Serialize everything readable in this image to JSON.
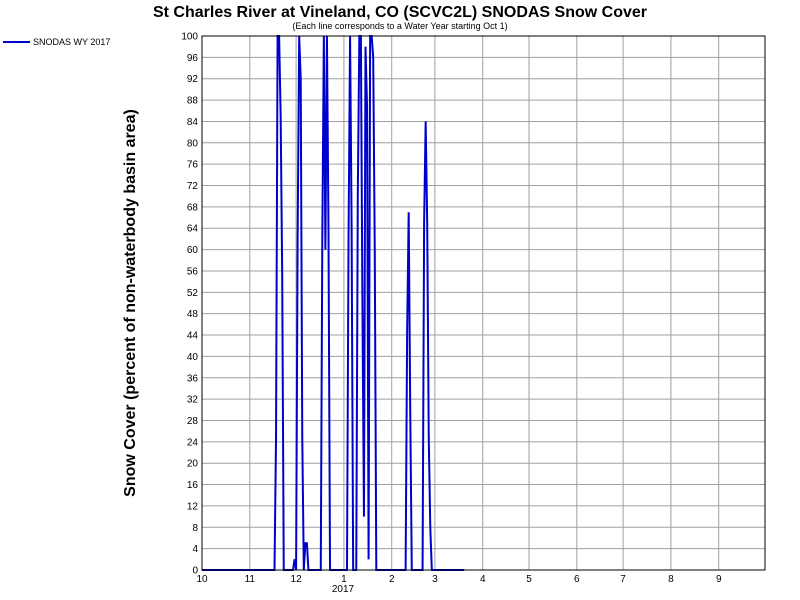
{
  "chart_data": {
    "type": "line",
    "title": "St Charles River at Vineland, CO (SCVC2L) SNODAS Snow Cover",
    "subtitle": "(Each line corresponds to a Water Year starting Oct 1)",
    "ylabel": "Snow Cover (percent of non-waterbody basin area)",
    "xlabel": "",
    "ylim": [
      0,
      100
    ],
    "xlim": [
      "2016-10-01",
      "2017-09-30"
    ],
    "y_ticks": [
      "0",
      "4",
      "8",
      "12",
      "16",
      "20",
      "24",
      "28",
      "32",
      "36",
      "40",
      "44",
      "48",
      "52",
      "56",
      "60",
      "64",
      "68",
      "72",
      "76",
      "80",
      "84",
      "88",
      "92",
      "96",
      "100"
    ],
    "x_ticks": [
      "10",
      "11",
      "12",
      "1",
      "2",
      "3",
      "4",
      "5",
      "6",
      "7",
      "8",
      "9"
    ],
    "x_year_label": "2017",
    "grid": true,
    "legend_position": "top-left",
    "series": [
      {
        "name": "SNODAS WY 2017",
        "color": "#0000cc",
        "points": [
          [
            "2016-10-01",
            0
          ],
          [
            "2016-11-17",
            0
          ],
          [
            "2016-11-18",
            25
          ],
          [
            "2016-11-19",
            100
          ],
          [
            "2016-11-20",
            100
          ],
          [
            "2016-11-21",
            85
          ],
          [
            "2016-11-22",
            55
          ],
          [
            "2016-11-23",
            0
          ],
          [
            "2016-11-29",
            0
          ],
          [
            "2016-11-30",
            2
          ],
          [
            "2016-12-01",
            0
          ],
          [
            "2016-12-02",
            62
          ],
          [
            "2016-12-03",
            100
          ],
          [
            "2016-12-04",
            92
          ],
          [
            "2016-12-05",
            25
          ],
          [
            "2016-12-06",
            0
          ],
          [
            "2016-12-07",
            5
          ],
          [
            "2016-12-08",
            5
          ],
          [
            "2016-12-09",
            0
          ],
          [
            "2016-12-17",
            0
          ],
          [
            "2016-12-18",
            62
          ],
          [
            "2016-12-19",
            100
          ],
          [
            "2016-12-20",
            60
          ],
          [
            "2016-12-21",
            100
          ],
          [
            "2016-12-22",
            64
          ],
          [
            "2016-12-23",
            0
          ],
          [
            "2017-01-03",
            0
          ],
          [
            "2017-01-04",
            62
          ],
          [
            "2017-01-05",
            100
          ],
          [
            "2017-01-06",
            64
          ],
          [
            "2017-01-07",
            0
          ],
          [
            "2017-01-09",
            0
          ],
          [
            "2017-01-10",
            70
          ],
          [
            "2017-01-11",
            100
          ],
          [
            "2017-01-12",
            100
          ],
          [
            "2017-01-13",
            50
          ],
          [
            "2017-01-14",
            10
          ],
          [
            "2017-01-15",
            98
          ],
          [
            "2017-01-16",
            87
          ],
          [
            "2017-01-17",
            2
          ],
          [
            "2017-01-18",
            100
          ],
          [
            "2017-01-19",
            100
          ],
          [
            "2017-01-20",
            96
          ],
          [
            "2017-01-21",
            60
          ],
          [
            "2017-01-22",
            0
          ],
          [
            "2017-02-10",
            0
          ],
          [
            "2017-02-11",
            45
          ],
          [
            "2017-02-12",
            67
          ],
          [
            "2017-02-13",
            30
          ],
          [
            "2017-02-14",
            0
          ],
          [
            "2017-02-21",
            0
          ],
          [
            "2017-02-22",
            65
          ],
          [
            "2017-02-23",
            84
          ],
          [
            "2017-02-24",
            65
          ],
          [
            "2017-02-25",
            25
          ],
          [
            "2017-02-26",
            8
          ],
          [
            "2017-02-27",
            0
          ],
          [
            "2017-03-20",
            0
          ]
        ]
      }
    ]
  }
}
